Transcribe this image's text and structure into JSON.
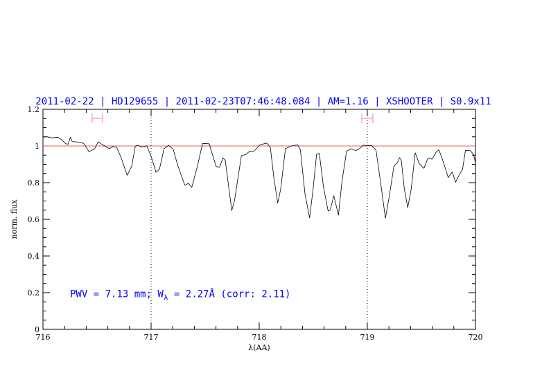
{
  "chart_data": {
    "type": "line",
    "title": "2011-02-22 | HD129655 | 2011-02-23T07:46:48.084 | AM=1.16 | XSHOOTER | S0.9x11",
    "xlabel": "λ(AA)",
    "ylabel": "norm. flux",
    "xlim": [
      716,
      720
    ],
    "ylim": [
      0,
      1.2
    ],
    "xticks": [
      "716",
      "717",
      "718",
      "719",
      "720"
    ],
    "yticks": [
      "0",
      "0.2",
      "0.4",
      "0.6",
      "0.8",
      "1",
      "1.2"
    ],
    "grid": false,
    "reference_line": {
      "y": 1.0,
      "color": "#e06060"
    },
    "dotted_markers_x": [
      717,
      719
    ],
    "error_bars": [
      {
        "x_range": [
          716.455,
          716.551
        ],
        "y": 1.151,
        "color": "#ff8080"
      },
      {
        "x_range": [
          718.949,
          719.051
        ],
        "y": 1.151,
        "color": "#ff8080"
      }
    ],
    "annotation": {
      "prefix": "PWV = 7.13 mm; W",
      "sub": "λ",
      "suffix": " = 2.27Å (corr: 2.11)",
      "x": 716.5,
      "y": 0.19
    },
    "series": [
      {
        "color": "#000000",
        "x": [
          716.0,
          716.04,
          716.083,
          716.137,
          716.169,
          716.212,
          716.233,
          716.254,
          716.271,
          716.297,
          716.361,
          716.383,
          716.425,
          716.479,
          716.511,
          716.553,
          716.617,
          716.639,
          716.681,
          716.724,
          716.778,
          716.821,
          716.853,
          716.874,
          716.917,
          716.96,
          717.002,
          717.045,
          717.077,
          717.12,
          717.162,
          717.205,
          717.248,
          717.312,
          717.344,
          717.376,
          717.429,
          717.476,
          717.537,
          717.601,
          717.633,
          717.665,
          717.686,
          717.746,
          717.771,
          717.835,
          717.878,
          717.91,
          717.953,
          718.006,
          718.071,
          718.103,
          718.135,
          718.171,
          718.199,
          718.242,
          718.295,
          718.355,
          718.381,
          718.423,
          718.466,
          718.498,
          718.53,
          718.556,
          718.594,
          718.637,
          718.658,
          718.69,
          718.733,
          718.765,
          718.808,
          718.851,
          718.893,
          718.925,
          718.962,
          719.043,
          719.081,
          719.128,
          719.167,
          719.203,
          719.246,
          719.278,
          719.299,
          719.314,
          719.342,
          719.374,
          719.406,
          719.442,
          719.481,
          719.524,
          719.556,
          719.572,
          719.598,
          719.636,
          719.662,
          719.694,
          719.748,
          719.786,
          719.816,
          719.854,
          719.88,
          719.908,
          719.951,
          719.983,
          720.0
        ],
        "y": [
          1.049,
          1.05,
          1.044,
          1.048,
          1.035,
          1.012,
          1.01,
          1.048,
          1.023,
          1.023,
          1.019,
          1.01,
          0.969,
          0.985,
          1.023,
          1.006,
          0.985,
          0.997,
          0.994,
          0.935,
          0.84,
          0.891,
          0.997,
          1.004,
          0.994,
          1.001,
          0.941,
          0.857,
          0.872,
          0.985,
          1.004,
          0.981,
          0.891,
          0.786,
          0.796,
          0.774,
          0.891,
          1.014,
          1.012,
          0.888,
          0.884,
          0.935,
          0.922,
          0.648,
          0.702,
          0.947,
          0.954,
          0.971,
          0.972,
          1.006,
          1.016,
          0.991,
          0.828,
          0.689,
          0.765,
          0.985,
          1.0,
          1.006,
          0.979,
          0.74,
          0.608,
          0.765,
          0.954,
          0.96,
          0.777,
          0.645,
          0.652,
          0.729,
          0.623,
          0.803,
          0.972,
          0.985,
          0.975,
          0.985,
          1.004,
          1.001,
          0.976,
          0.777,
          0.606,
          0.727,
          0.891,
          0.909,
          0.937,
          0.922,
          0.765,
          0.664,
          0.765,
          0.963,
          0.903,
          0.878,
          0.928,
          0.935,
          0.928,
          0.966,
          0.979,
          0.928,
          0.828,
          0.859,
          0.803,
          0.847,
          0.872,
          0.976,
          0.975,
          0.954,
          0.906
        ]
      }
    ]
  }
}
